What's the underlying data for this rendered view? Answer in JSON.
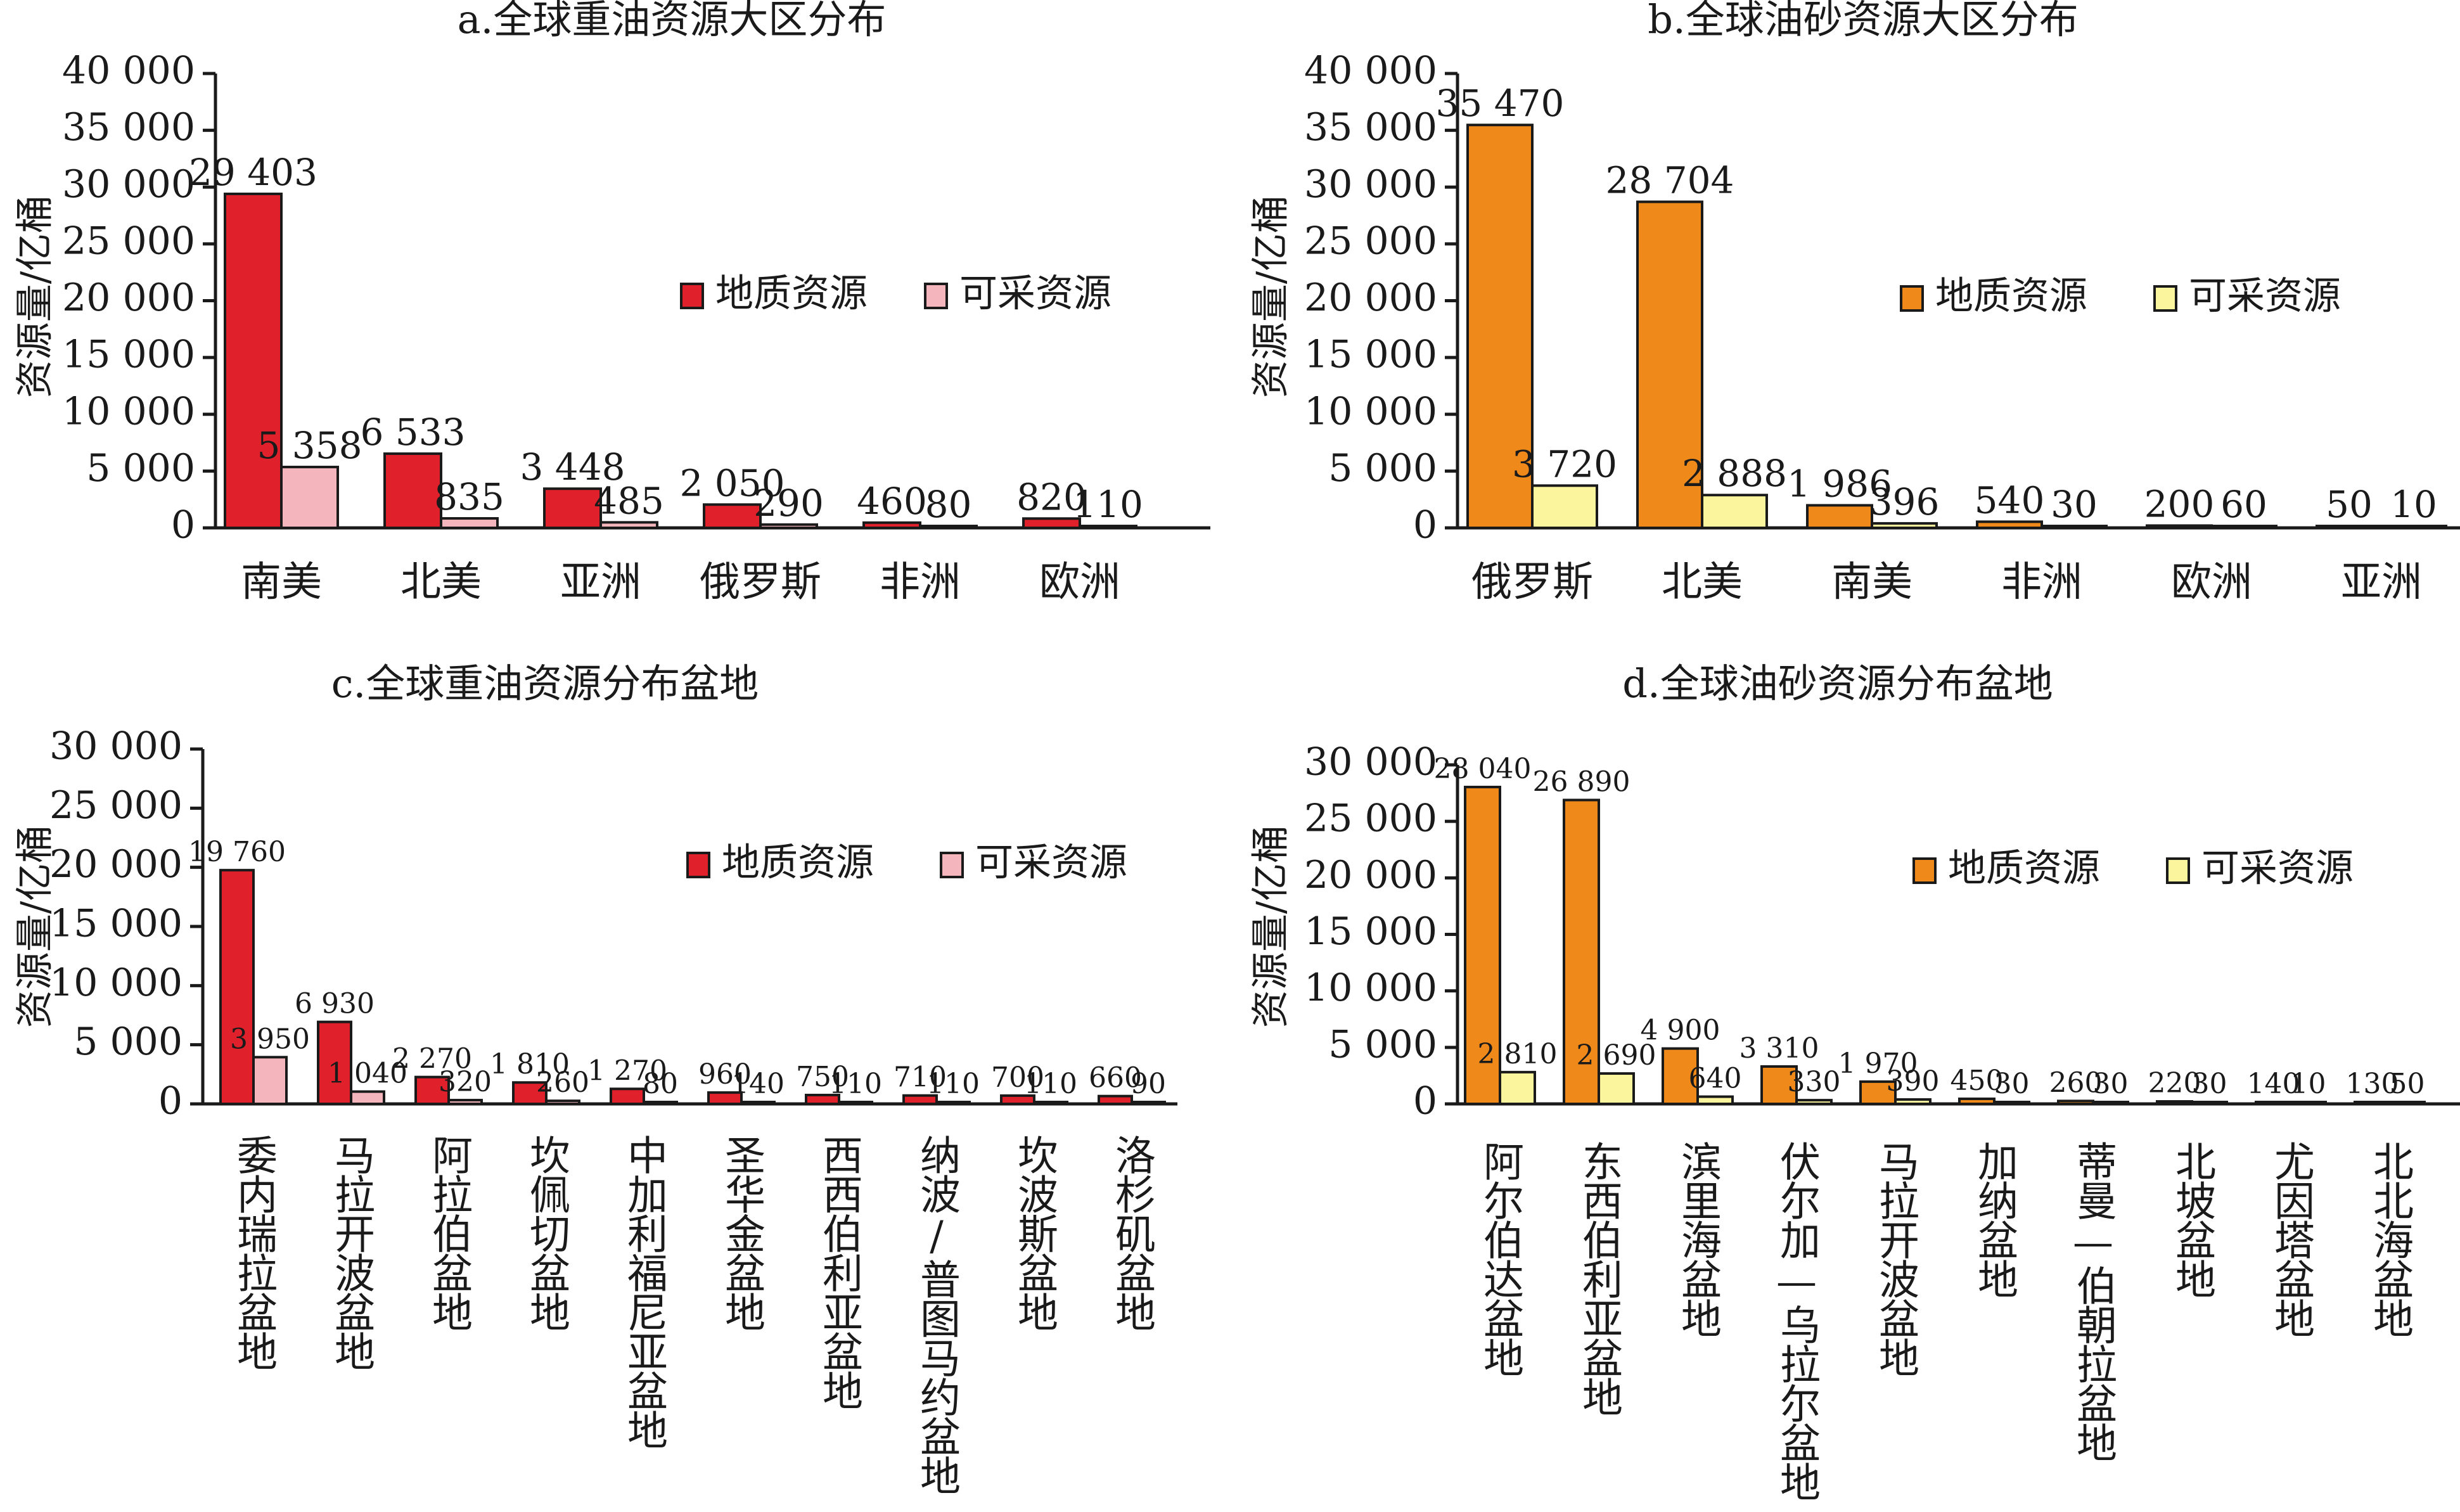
{
  "chart_data": [
    {
      "id": "a",
      "type": "bar",
      "title": "a.全球重油资源大区分布",
      "ylabel": "资源量/亿桶",
      "ylim": [
        0,
        40000
      ],
      "yticks": [
        0,
        5000,
        10000,
        15000,
        20000,
        25000,
        30000,
        35000,
        40000
      ],
      "ytick_labels": [
        "0",
        "5 000",
        "10 000",
        "15 000",
        "20 000",
        "25 000",
        "30 000",
        "35 000",
        "40 000"
      ],
      "categories": [
        "南美",
        "北美",
        "亚洲",
        "俄罗斯",
        "非洲",
        "欧洲"
      ],
      "series": [
        {
          "name": "地质资源",
          "color": "#e0202b",
          "values": [
            29403,
            6533,
            3448,
            2050,
            460,
            820
          ],
          "labels": [
            "29 403",
            "6 533",
            "3 448",
            "2 050",
            "460",
            "820"
          ]
        },
        {
          "name": "可采资源",
          "color": "#f4b6bc",
          "values": [
            5358,
            835,
            485,
            290,
            80,
            110
          ],
          "labels": [
            "5 358",
            "835",
            "485",
            "290",
            "80",
            "110"
          ]
        }
      ],
      "legend": [
        "地质资源",
        "可采资源"
      ],
      "legend_position": "right-middle"
    },
    {
      "id": "b",
      "type": "bar",
      "title": "b.全球油砂资源大区分布",
      "ylabel": "资源量/亿桶",
      "ylim": [
        0,
        40000
      ],
      "yticks": [
        0,
        5000,
        10000,
        15000,
        20000,
        25000,
        30000,
        35000,
        40000
      ],
      "ytick_labels": [
        "0",
        "5 000",
        "10 000",
        "15 000",
        "20 000",
        "25 000",
        "30 000",
        "35 000",
        "40 000"
      ],
      "categories": [
        "俄罗斯",
        "北美",
        "南美",
        "非洲",
        "欧洲",
        "亚洲"
      ],
      "series": [
        {
          "name": "地质资源",
          "color": "#ef8a1a",
          "values": [
            35470,
            28704,
            1986,
            540,
            200,
            50
          ],
          "labels": [
            "35 470",
            "28 704",
            "1 986",
            "540",
            "200",
            "50"
          ]
        },
        {
          "name": "可采资源",
          "color": "#fbf59e",
          "values": [
            3720,
            2888,
            396,
            30,
            60,
            10
          ],
          "labels": [
            "3 720",
            "2 888",
            "396",
            "30",
            "60",
            "10"
          ]
        }
      ],
      "legend": [
        "地质资源",
        "可采资源"
      ],
      "legend_position": "right-middle"
    },
    {
      "id": "c",
      "type": "bar",
      "title": "c.全球重油资源分布盆地",
      "ylabel": "资源量/亿桶",
      "ylim": [
        0,
        30000
      ],
      "yticks": [
        0,
        5000,
        10000,
        15000,
        20000,
        25000,
        30000
      ],
      "ytick_labels": [
        "0",
        "5 000",
        "10 000",
        "15 000",
        "20 000",
        "25 000",
        "30 000"
      ],
      "categories": [
        "委内瑞拉盆地",
        "马拉开波盆地",
        "阿拉伯盆地",
        "坎佩切盆地",
        "中加利福尼亚盆地",
        "圣华金盆地",
        "西西伯利亚盆地",
        "纳波/普图马约盆地",
        "坎波斯盆地",
        "洛杉矶盆地"
      ],
      "series": [
        {
          "name": "地质资源",
          "color": "#e0202b",
          "values": [
            19760,
            6930,
            2270,
            1810,
            1270,
            960,
            750,
            710,
            700,
            660
          ],
          "labels": [
            "19 760",
            "6 930",
            "2 270",
            "1 810",
            "1 270",
            "960",
            "750",
            "710",
            "700",
            "660"
          ]
        },
        {
          "name": "可采资源",
          "color": "#f4b6bc",
          "values": [
            3950,
            1040,
            320,
            260,
            80,
            140,
            110,
            110,
            110,
            90
          ],
          "labels": [
            "3 950",
            "1 040",
            "320",
            "260",
            "80",
            "140",
            "110",
            "110",
            "110",
            "90"
          ]
        }
      ],
      "legend": [
        "地质资源",
        "可采资源"
      ],
      "legend_position": "right-top"
    },
    {
      "id": "d",
      "type": "bar",
      "title": "d.全球油砂资源分布盆地",
      "ylabel": "资源量/亿桶",
      "ylim": [
        0,
        30000
      ],
      "yticks": [
        0,
        5000,
        10000,
        15000,
        20000,
        25000,
        30000
      ],
      "ytick_labels": [
        "0",
        "5 000",
        "10 000",
        "15 000",
        "20 000",
        "25 000",
        "30 000"
      ],
      "categories": [
        "阿尔伯达盆地",
        "东西伯利亚盆地",
        "滨里海盆地",
        "伏尔加—乌拉尔盆地",
        "马拉开波盆地",
        "加纳盆地",
        "蒂曼—伯朝拉盆地",
        "北坡盆地",
        "尤因塔盆地",
        "北北海盆地"
      ],
      "series": [
        {
          "name": "地质资源",
          "color": "#ef8a1a",
          "values": [
            28040,
            26890,
            4900,
            3310,
            1970,
            450,
            260,
            220,
            140,
            130
          ],
          "labels": [
            "28 040",
            "26 890",
            "4 900",
            "3 310",
            "1 970",
            "450",
            "260",
            "220",
            "140",
            "130"
          ]
        },
        {
          "name": "可采资源",
          "color": "#fbf59e",
          "values": [
            2810,
            2690,
            640,
            330,
            390,
            30,
            30,
            30,
            10,
            50
          ],
          "labels": [
            "2 810",
            "2 690",
            "640",
            "330",
            "390",
            "30",
            "30",
            "30",
            "10",
            "50"
          ]
        }
      ],
      "legend": [
        "地质资源",
        "可采资源"
      ],
      "legend_position": "right-top"
    }
  ]
}
